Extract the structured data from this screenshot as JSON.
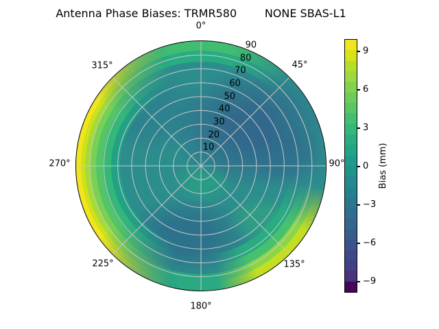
{
  "title": "Antenna Phase Biases: TRMR580        NONE SBAS-L1",
  "polar": {
    "angle_labels": [
      "0°",
      "45°",
      "90°",
      "135°",
      "180°",
      "225°",
      "270°",
      "315°"
    ],
    "radial_labels": [
      "10",
      "20",
      "30",
      "40",
      "50",
      "60",
      "70",
      "80",
      "90"
    ],
    "grid_color": "#c9c9c9",
    "base_color": "#2c8d8d"
  },
  "colorbar": {
    "label": "Bias (mm)",
    "ticks": [
      {
        "label": "9",
        "value": 9
      },
      {
        "label": "6",
        "value": 6
      },
      {
        "label": "3",
        "value": 3
      },
      {
        "label": "0",
        "value": 0
      },
      {
        "label": "−3",
        "value": -3
      },
      {
        "label": "−6",
        "value": -6
      },
      {
        "label": "−9",
        "value": -9
      }
    ],
    "band_colors_top_to_bottom": [
      "#f0e51e",
      "#d8e219",
      "#b5de2b",
      "#9dd93b",
      "#81d34d",
      "#6ccd5a",
      "#56c667",
      "#44bf70",
      "#35b779",
      "#29af7f",
      "#21a585",
      "#1f9c89",
      "#20938c",
      "#238a8d",
      "#26818e",
      "#2a788e",
      "#2e6f8e",
      "#32668d",
      "#365d8d",
      "#3a538b",
      "#3e4989",
      "#423f85",
      "#46327e",
      "#450559"
    ]
  },
  "chart_data": {
    "type": "heatmap",
    "projection": "polar-skyplot",
    "title": "Antenna Phase Biases: TRMR580        NONE SBAS-L1",
    "angular_ticks_deg": [
      0,
      45,
      90,
      135,
      180,
      225,
      270,
      315
    ],
    "radial_ticks": [
      10,
      20,
      30,
      40,
      50,
      60,
      70,
      80,
      90
    ],
    "radial_axis": "zenith angle (deg), 0 at center to 90 at edge",
    "colorbar": {
      "label": "Bias (mm)",
      "tick_values": [
        9,
        6,
        3,
        0,
        -3,
        -6,
        -9
      ],
      "range": [
        -10,
        10
      ],
      "colormap": "viridis",
      "n_bands": 24
    },
    "sampled_points": [
      {
        "azimuth_deg": 0,
        "zenith_deg": 0,
        "bias_mm": 0.0
      },
      {
        "azimuth_deg": 170,
        "zenith_deg": 12,
        "bias_mm": 1.5
      },
      {
        "azimuth_deg": 50,
        "zenith_deg": 45,
        "bias_mm": -3.0
      },
      {
        "azimuth_deg": 90,
        "zenith_deg": 55,
        "bias_mm": -2.0
      },
      {
        "azimuth_deg": 185,
        "zenith_deg": 55,
        "bias_mm": -2.5
      },
      {
        "azimuth_deg": 320,
        "zenith_deg": 45,
        "bias_mm": -1.0
      },
      {
        "azimuth_deg": 0,
        "zenith_deg": 90,
        "bias_mm": 3.5
      },
      {
        "azimuth_deg": 45,
        "zenith_deg": 90,
        "bias_mm": 1.5
      },
      {
        "azimuth_deg": 90,
        "zenith_deg": 90,
        "bias_mm": 0.5
      },
      {
        "azimuth_deg": 135,
        "zenith_deg": 90,
        "bias_mm": 6.0
      },
      {
        "azimuth_deg": 180,
        "zenith_deg": 90,
        "bias_mm": 2.5
      },
      {
        "azimuth_deg": 225,
        "zenith_deg": 90,
        "bias_mm": 4.5
      },
      {
        "azimuth_deg": 270,
        "zenith_deg": 90,
        "bias_mm": 9.5
      },
      {
        "azimuth_deg": 315,
        "zenith_deg": 90,
        "bias_mm": 5.0
      }
    ]
  }
}
